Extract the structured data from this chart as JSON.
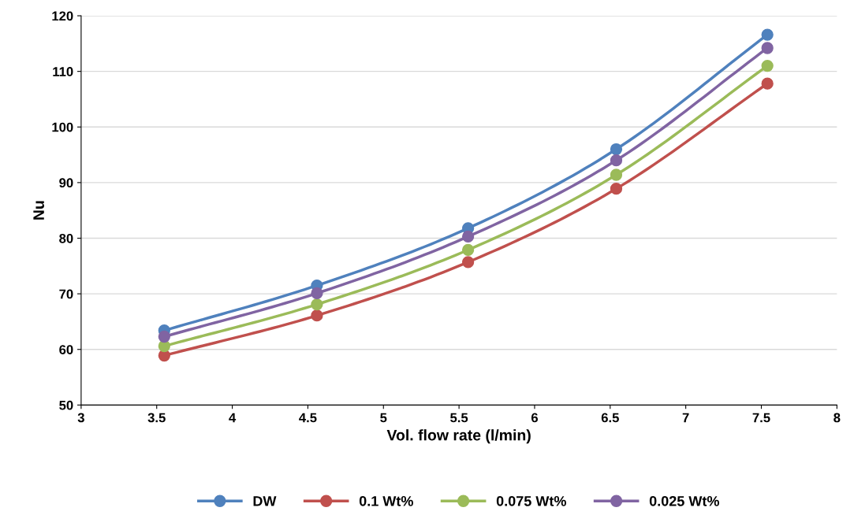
{
  "chart_data": {
    "type": "line",
    "xlabel": "Vol. flow rate (l/min)",
    "ylabel": "Nu",
    "x": [
      3.55,
      4.56,
      5.56,
      6.54,
      7.54
    ],
    "series": [
      {
        "name": "DW",
        "color": "#4f81bd",
        "values": [
          63.4,
          71.5,
          81.8,
          96,
          116.6
        ]
      },
      {
        "name": "0.1 Wt%",
        "color": "#c0504d",
        "values": [
          58.9,
          66.1,
          75.7,
          88.9,
          107.8
        ]
      },
      {
        "name": "0.075 Wt%",
        "color": "#9bbb59",
        "values": [
          60.6,
          68.1,
          77.9,
          91.4,
          111
        ]
      },
      {
        "name": "0.025 Wt%",
        "color": "#8064a2",
        "values": [
          62.3,
          70.1,
          80.3,
          94,
          114.2
        ]
      }
    ],
    "xlim": [
      3,
      8
    ],
    "xticks": [
      3,
      3.5,
      4,
      4.5,
      5,
      5.5,
      6,
      6.5,
      7,
      7.5,
      8
    ],
    "ylim": [
      50,
      120
    ],
    "yticks": [
      50,
      60,
      70,
      80,
      90,
      100,
      110,
      120
    ],
    "grid": "y",
    "legend": "bottom",
    "marker": "circle",
    "line_style": "solid"
  }
}
